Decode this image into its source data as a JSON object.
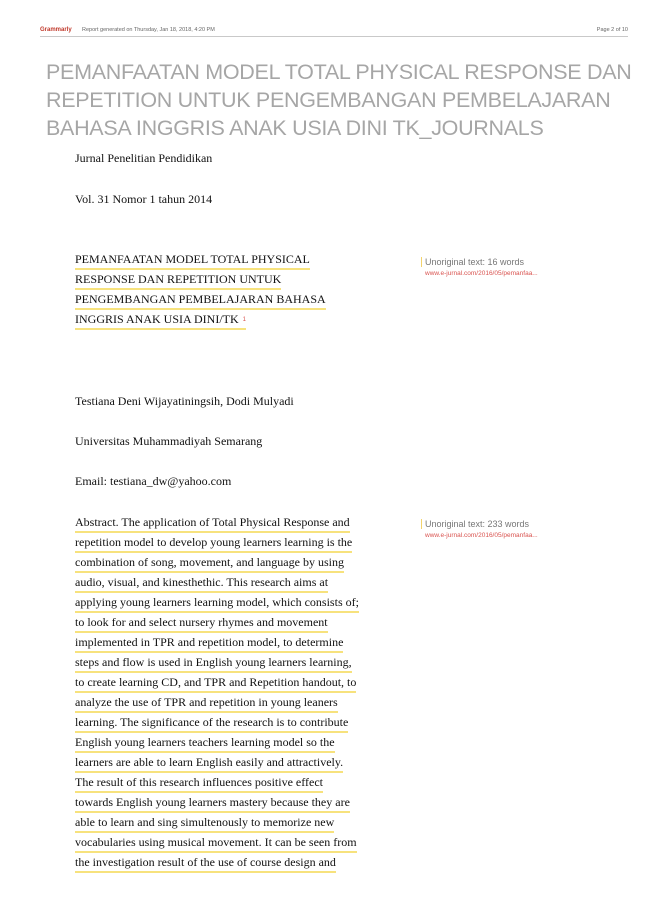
{
  "header": {
    "brand": "Grammarly",
    "generated": "Report generated on Thursday, Jan 18, 2018, 4:20 PM",
    "page": "Page 2 of 10"
  },
  "document": {
    "title_lines": [
      "PEMANFAATAN MODEL TOTAL PHYSICAL RESPONSE DAN",
      "REPETITION UNTUK PENGEMBANGAN PEMBELAJARAN",
      "BAHASA INGGRIS ANAK USIA DINI TK_JOURNALS"
    ],
    "journal": "Jurnal Penelitian Pendidikan",
    "volume": "Vol. 31 Nomor 1 tahun 2014",
    "paper_title_lines": [
      "PEMANFAATAN MODEL TOTAL PHYSICAL",
      "RESPONSE DAN REPETITION UNTUK",
      "PENGEMBANGAN PEMBELAJARAN BAHASA",
      "INGGRIS ANAK USIA DINI/TK"
    ],
    "paper_title_ref": "1",
    "authors": "Testiana Deni Wijayatiningsih, Dodi Mulyadi",
    "affiliation": "Universitas Muhammadiyah Semarang",
    "email": "Email: testiana_dw@yahoo.com",
    "abstract_lines": [
      "Abstract. The application of Total Physical Response and",
      "repetition model to develop young learners learning is the",
      "combination of song, movement, and language by using",
      "audio, visual, and kinesthethic. This research aims at",
      "applying young learners learning model, which consists of;",
      "to look for and select nursery rhymes and movement",
      "implemented in TPR and repetition model, to determine",
      "steps and flow is used in English young learners learning,",
      "to create learning CD, and TPR and Repetition handout, to",
      "analyze the use of TPR and repetition in young leaners",
      "learning. The significance of the research is to contribute",
      "English young learners teachers learning model so the",
      "learners are able to learn English easily and attractively.",
      "The result of this research influences positive effect",
      "towards English young learners mastery because they are",
      "able to learn and sing simultenously to memorize new",
      "vocabularies using musical movement. It can be seen from",
      "the investigation result of the use of course design and"
    ]
  },
  "sources": [
    {
      "label": "Unoriginal text: 16 words",
      "url": "www.e-jurnal.com/2016/05/pemanfaa..."
    },
    {
      "label": "Unoriginal text: 233 words",
      "url": "www.e-jurnal.com/2016/05/pemanfaa..."
    }
  ]
}
